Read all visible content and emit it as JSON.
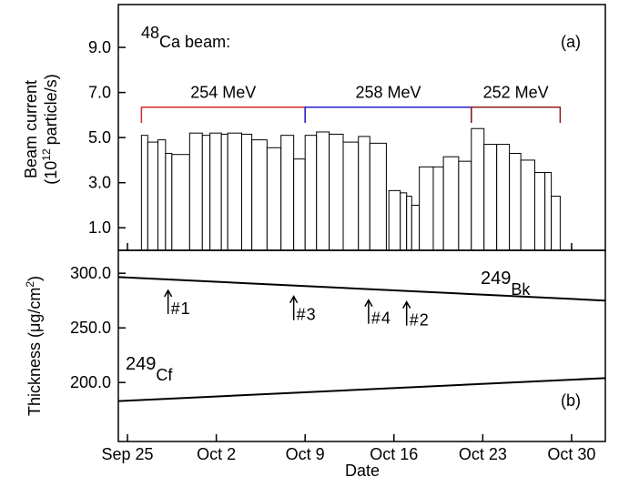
{
  "chart_data": [
    {
      "type": "bar",
      "title": {
        "sup": "48",
        "text": "Ca beam:"
      },
      "panel_label": "(a)",
      "y_label": {
        "line1": "Beam current",
        "open": "(10",
        "sup": "12",
        "rest": "particle/s)"
      },
      "x_start": [
        1.1,
        1.6,
        2.4,
        3.0,
        3.5,
        4.9,
        5.9,
        6.5,
        7.4,
        7.9,
        9.0,
        9.8,
        11.0,
        12.1,
        13.1,
        14.0,
        14.9,
        15.9,
        17.0,
        18.2,
        19.1,
        20.6,
        21.5,
        22.0,
        22.4,
        23.0,
        24.1,
        24.9,
        26.1,
        27.1,
        28.1,
        29.1,
        30.1,
        31.0,
        32.1,
        32.9,
        33.4
      ],
      "x_end": [
        1.6,
        2.4,
        3.0,
        3.5,
        4.9,
        5.9,
        6.5,
        7.4,
        7.9,
        9.0,
        9.8,
        11.0,
        12.1,
        13.1,
        14.0,
        14.9,
        15.9,
        17.0,
        18.2,
        19.1,
        20.4,
        21.5,
        22.0,
        22.4,
        23.0,
        24.1,
        24.9,
        26.1,
        27.1,
        28.1,
        29.1,
        30.1,
        31.0,
        32.1,
        32.9,
        33.4,
        34.1
      ],
      "values": [
        5.1,
        4.8,
        4.9,
        4.3,
        4.25,
        5.2,
        5.1,
        5.2,
        5.15,
        5.2,
        5.15,
        4.9,
        4.55,
        5.1,
        4.05,
        5.1,
        5.25,
        5.15,
        4.8,
        5.05,
        4.75,
        2.65,
        2.55,
        2.4,
        2.0,
        3.7,
        3.7,
        4.15,
        3.95,
        5.4,
        4.7,
        4.7,
        4.3,
        4.0,
        3.45,
        3.45,
        2.4
      ],
      "color": "#ffffff",
      "brackets": [
        {
          "label": "254 MeV",
          "start": 1.1,
          "end": 14.0,
          "top": 6.35,
          "bottom": 5.65,
          "color": "#d42a2a"
        },
        {
          "label": "258 MeV",
          "start": 14.0,
          "end": 27.1,
          "top": 6.35,
          "bottom": 5.65,
          "color": "#2222cc"
        },
        {
          "label": "252 MeV",
          "start": 27.1,
          "end": 34.1,
          "top": 6.35,
          "bottom": 5.65,
          "color": "#8b1c1c"
        }
      ],
      "xlim": [
        -0.72,
        37.66
      ],
      "ylim": [
        0,
        10.9
      ],
      "yticks": [
        {
          "value": 1,
          "label": "1.0"
        },
        {
          "value": 3,
          "label": "3.0"
        },
        {
          "value": 5,
          "label": "5.0"
        },
        {
          "value": 7,
          "label": "7.0"
        },
        {
          "value": 9,
          "label": "9.0"
        }
      ]
    },
    {
      "type": "line",
      "panel_label": "(b)",
      "y_label": {
        "text": "Thickness (μg/cm",
        "sup": "2",
        "close": ")"
      },
      "x_label": "Date",
      "x": [
        -0.72,
        37.66
      ],
      "series": [
        {
          "name": {
            "sup": "249",
            "text": "Bk"
          },
          "color": "#000000",
          "values": [
            296.5,
            275
          ]
        },
        {
          "name": {
            "sup": "249",
            "text": "Cf"
          },
          "color": "#000000",
          "values": [
            183,
            204
          ]
        }
      ],
      "arrows": [
        {
          "label": "#1",
          "x": 3.2
        },
        {
          "label": "#3",
          "x": 13.1
        },
        {
          "label": "#4",
          "x": 19.0
        },
        {
          "label": "#2",
          "x": 22.0
        }
      ],
      "xlim": [
        -0.72,
        37.66
      ],
      "ylim": [
        146,
        321
      ],
      "xticks": [
        {
          "value": 0,
          "label": "Sep 25"
        },
        {
          "value": 7,
          "label": "Oct 2"
        },
        {
          "value": 14,
          "label": "Oct 9"
        },
        {
          "value": 21,
          "label": "Oct 16"
        },
        {
          "value": 28,
          "label": "Oct 23"
        },
        {
          "value": 35,
          "label": "Oct 30"
        }
      ],
      "yticks": [
        {
          "value": 200,
          "label": "200.0"
        },
        {
          "value": 250,
          "label": "250.0"
        },
        {
          "value": 300,
          "label": "300.0"
        }
      ]
    }
  ]
}
